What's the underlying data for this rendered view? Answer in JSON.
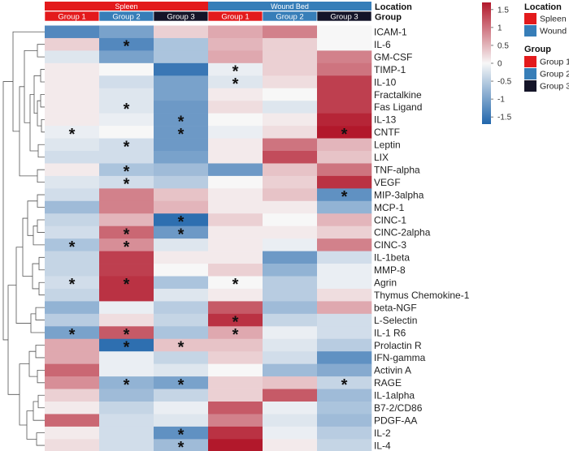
{
  "chart_data": {
    "type": "heatmap",
    "title": "",
    "annotation_rows": [
      {
        "name": "Location",
        "labels": [
          "Spleen",
          "Wound Bed"
        ]
      },
      {
        "name": "Group",
        "labels": [
          "Group 1",
          "Group 2",
          "Group 3",
          "Group 1",
          "Group 2",
          "Group 3"
        ]
      }
    ],
    "columns": [
      {
        "location": "Spleen",
        "group": "Group 1"
      },
      {
        "location": "Spleen",
        "group": "Group 2"
      },
      {
        "location": "Spleen",
        "group": "Group 3"
      },
      {
        "location": "Wound Bed",
        "group": "Group 1"
      },
      {
        "location": "Wound Bed",
        "group": "Group 2"
      },
      {
        "location": "Wound Bed",
        "group": "Group 3"
      }
    ],
    "rows": [
      "ICAM-1",
      "IL-6",
      "GM-CSF",
      "TIMP-1",
      "IL-10",
      "Fractalkine",
      "Fas Ligand",
      "IL-13",
      "CNTF",
      "Leptin",
      "LIX",
      "TNF-alpha",
      "VEGF",
      "MIP-3alpha",
      "MCP-1",
      "CINC-1",
      "CINC-2alpha",
      "CINC-3",
      "IL-1beta",
      "MMP-8",
      "Agrin",
      "Thymus Chemokine-1",
      "beta-NGF",
      "L-Selectin",
      "IL-1 R6",
      "Prolactin R",
      "IFN-gamma",
      "Activin A",
      "RAGE",
      "IL-1alpha",
      "B7-2/CD86",
      "PDGF-AA",
      "IL-2",
      "IL-4"
    ],
    "values": [
      [
        -1.3,
        -1.0,
        0.3,
        0.6,
        0.9,
        0.0
      ],
      [
        0.3,
        -1.3,
        -0.6,
        0.5,
        0.3,
        0.0
      ],
      [
        -0.2,
        -1.0,
        -0.6,
        0.6,
        0.3,
        0.9
      ],
      [
        0.1,
        0.0,
        -1.5,
        -0.1,
        0.3,
        1.0
      ],
      [
        0.1,
        -0.3,
        -1.0,
        -0.2,
        0.2,
        1.4
      ],
      [
        0.1,
        -0.2,
        -1.0,
        0.1,
        0.0,
        1.4
      ],
      [
        0.1,
        -0.2,
        -1.1,
        0.2,
        -0.2,
        1.4
      ],
      [
        0.1,
        -0.1,
        -1.1,
        0.0,
        0.1,
        1.6
      ],
      [
        -0.1,
        0.0,
        -1.1,
        -0.1,
        0.2,
        1.7
      ],
      [
        -0.2,
        -0.3,
        -1.1,
        0.1,
        1.0,
        0.5
      ],
      [
        -0.3,
        -0.3,
        -1.0,
        0.1,
        1.3,
        0.4
      ],
      [
        0.1,
        -0.6,
        -0.7,
        -1.1,
        0.4,
        1.0
      ],
      [
        -0.2,
        -0.3,
        -0.5,
        0.0,
        0.3,
        1.5
      ],
      [
        -0.3,
        0.9,
        0.4,
        0.1,
        0.4,
        -1.2
      ],
      [
        -0.7,
        0.9,
        0.5,
        0.1,
        0.1,
        -0.8
      ],
      [
        -0.4,
        0.5,
        -1.6,
        0.3,
        0.0,
        0.5
      ],
      [
        -0.3,
        1.1,
        -1.1,
        0.1,
        0.1,
        0.3
      ],
      [
        -0.6,
        0.8,
        -0.2,
        0.1,
        -0.1,
        0.9
      ],
      [
        -0.4,
        1.4,
        0.1,
        0.1,
        -1.1,
        -0.3
      ],
      [
        -0.4,
        1.4,
        0.0,
        0.3,
        -0.8,
        -0.1
      ],
      [
        -0.3,
        1.5,
        -0.6,
        0.0,
        -0.5,
        -0.1
      ],
      [
        -0.4,
        1.5,
        -0.2,
        0.1,
        -0.5,
        0.2
      ],
      [
        -0.8,
        -0.1,
        -0.5,
        1.2,
        -0.7,
        0.6
      ],
      [
        -0.5,
        0.2,
        -0.4,
        1.5,
        -0.4,
        -0.3
      ],
      [
        -1.0,
        1.2,
        -0.6,
        0.6,
        -0.1,
        -0.3
      ],
      [
        0.6,
        -1.6,
        0.4,
        0.4,
        -0.2,
        -0.5
      ],
      [
        0.6,
        -0.1,
        -0.4,
        0.3,
        -0.3,
        -1.2
      ],
      [
        1.1,
        -0.1,
        -0.2,
        0.0,
        -0.7,
        -0.9
      ],
      [
        0.8,
        -0.8,
        -1.0,
        0.3,
        0.4,
        -0.4
      ],
      [
        0.3,
        -0.7,
        -0.4,
        0.3,
        1.2,
        -0.7
      ],
      [
        0.1,
        -0.4,
        -0.1,
        1.2,
        -0.1,
        -0.6
      ],
      [
        1.1,
        -0.3,
        -0.2,
        0.9,
        -0.2,
        -0.7
      ],
      [
        0.1,
        -0.3,
        -1.2,
        1.5,
        -0.1,
        -0.5
      ],
      [
        0.2,
        -0.3,
        -0.7,
        1.7,
        0.1,
        -0.4
      ]
    ],
    "significant": [
      [
        "IL-6",
        "Spleen Group 2"
      ],
      [
        "TIMP-1",
        "Wound Bed Group 1"
      ],
      [
        "IL-10",
        "Wound Bed Group 1"
      ],
      [
        "Fas Ligand",
        "Spleen Group 2"
      ],
      [
        "IL-13",
        "Spleen Group 3"
      ],
      [
        "CNTF",
        "Spleen Group 1"
      ],
      [
        "CNTF",
        "Spleen Group 3"
      ],
      [
        "CNTF",
        "Wound Bed Group 3"
      ],
      [
        "Leptin",
        "Spleen Group 2"
      ],
      [
        "TNF-alpha",
        "Spleen Group 2"
      ],
      [
        "VEGF",
        "Spleen Group 2"
      ],
      [
        "MIP-3alpha",
        "Wound Bed Group 3"
      ],
      [
        "CINC-1",
        "Spleen Group 3"
      ],
      [
        "CINC-2alpha",
        "Spleen Group 2"
      ],
      [
        "CINC-2alpha",
        "Spleen Group 3"
      ],
      [
        "CINC-3",
        "Spleen Group 1"
      ],
      [
        "CINC-3",
        "Spleen Group 2"
      ],
      [
        "Agrin",
        "Spleen Group 1"
      ],
      [
        "Agrin",
        "Spleen Group 2"
      ],
      [
        "Agrin",
        "Wound Bed Group 1"
      ],
      [
        "L-Selectin",
        "Wound Bed Group 1"
      ],
      [
        "IL-1 R6",
        "Spleen Group 1"
      ],
      [
        "IL-1 R6",
        "Spleen Group 2"
      ],
      [
        "IL-1 R6",
        "Wound Bed Group 1"
      ],
      [
        "Prolactin R",
        "Spleen Group 2"
      ],
      [
        "Prolactin R",
        "Spleen Group 3"
      ],
      [
        "RAGE",
        "Spleen Group 2"
      ],
      [
        "RAGE",
        "Spleen Group 3"
      ],
      [
        "RAGE",
        "Wound Bed Group 3"
      ],
      [
        "IL-2",
        "Spleen Group 3"
      ],
      [
        "IL-4",
        "Spleen Group 3"
      ]
    ],
    "significance_marker": "*",
    "color_scale": {
      "ticks": [
        1.5,
        1,
        0.5,
        0,
        -0.5,
        -1,
        -1.5
      ],
      "tick_labels": [
        "1.5",
        "1",
        "0.5",
        "0",
        "-0.5",
        "-1",
        "-1.5"
      ],
      "range": [
        -1.7,
        1.7
      ],
      "low_color": "#2166ac",
      "mid_color": "#f7f7f7",
      "high_color": "#b2182b"
    },
    "legend": {
      "location_title": "Location",
      "location_items": [
        {
          "label": "Spleen",
          "color": "#e31a1c"
        },
        {
          "label": "Wound Bed",
          "color": "#377eb8"
        }
      ],
      "group_title": "Group",
      "group_items": [
        {
          "label": "Group 1",
          "color": "#e31a1c"
        },
        {
          "label": "Group 2",
          "color": "#377eb8"
        },
        {
          "label": "Group 3",
          "color": "#141428"
        }
      ]
    }
  }
}
